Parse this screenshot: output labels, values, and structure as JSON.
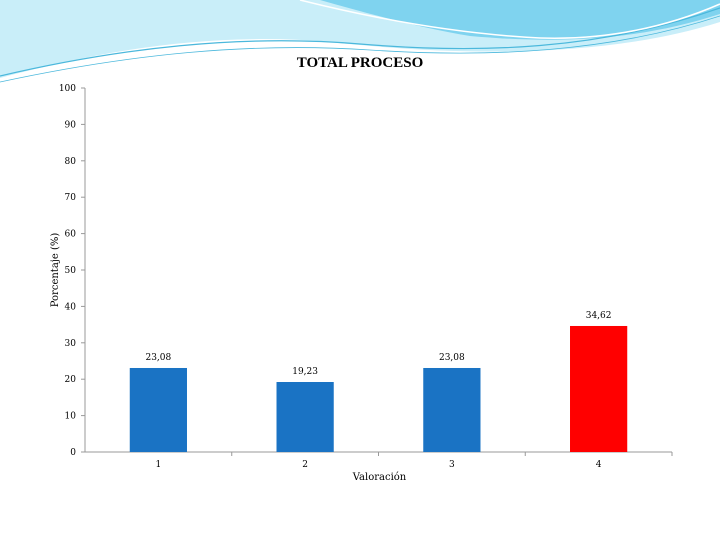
{
  "chart_data": {
    "type": "bar",
    "title": "TOTAL PROCESO",
    "xlabel": "Valoración",
    "ylabel": "Porcentaje (%)",
    "categories": [
      "1",
      "2",
      "3",
      "4"
    ],
    "values": [
      23.08,
      19.23,
      23.08,
      34.62
    ],
    "value_labels": [
      "23,08",
      "19,23",
      "23,08",
      "34,62"
    ],
    "ylim": [
      0,
      100
    ],
    "yticks": [
      0,
      10,
      20,
      30,
      40,
      50,
      60,
      70,
      80,
      90,
      100
    ],
    "bar_colors": [
      "#1a73c4",
      "#1a73c4",
      "#1a73c4",
      "#ff0000"
    ],
    "grid": false,
    "legend": "none"
  },
  "theme": {
    "wave_light": "#c9eef9",
    "wave_mid": "#7fd3ef",
    "wave_line": "#4bb8dc"
  }
}
